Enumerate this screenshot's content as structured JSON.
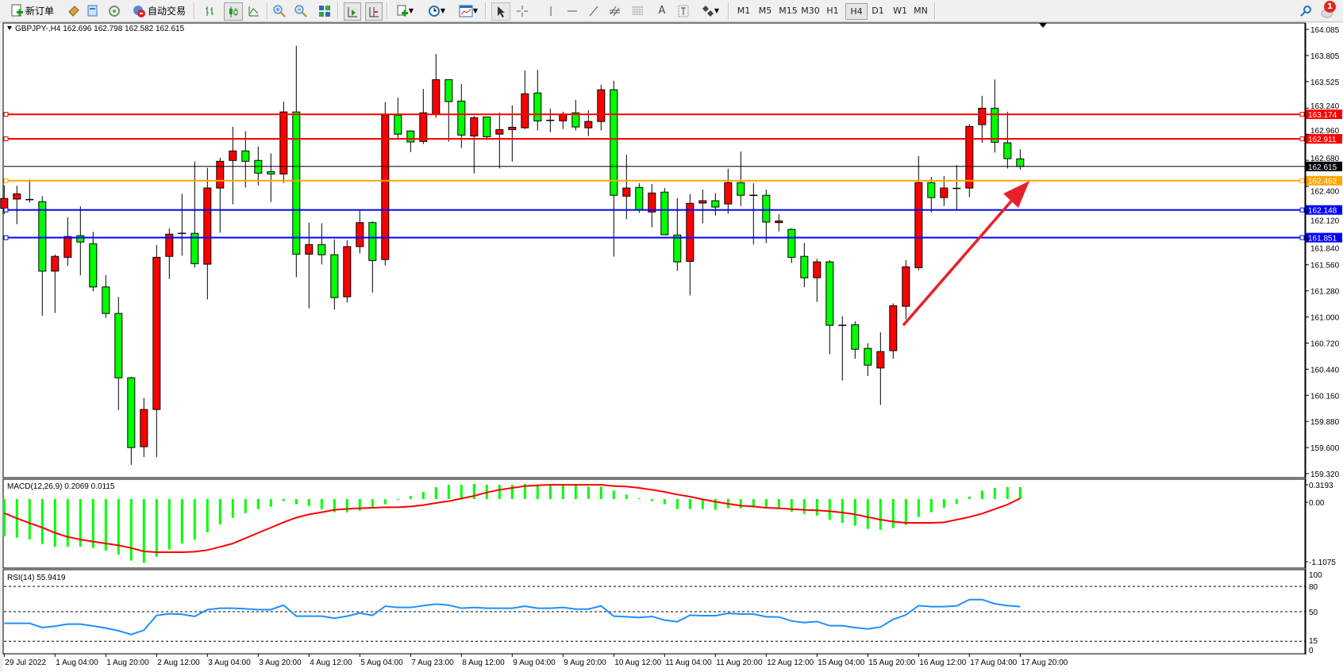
{
  "toolbar": {
    "new_order_label": "新订单",
    "auto_trading_label": "自动交易",
    "timeframes": [
      "M1",
      "M5",
      "M15",
      "M30",
      "H1",
      "H4",
      "D1",
      "W1",
      "MN"
    ],
    "active_timeframe": "H4",
    "notification_count": "1"
  },
  "chart_header": {
    "symbol_line": "GBPJPY-,H4  162.696 162.798 162.582 162.615"
  },
  "colors": {
    "bull_candle": "#ff0000",
    "bear_candle": "#00ff00",
    "resistance_line": "#ff0000",
    "pivot_line": "#ffa500",
    "support_line": "#0000ff",
    "current_price_line": "#000000",
    "macd_histogram": "#00ff00",
    "macd_signal": "#ff0000",
    "rsi_line": "#1e90ff",
    "arrow": "#e8202a"
  },
  "price_axis": {
    "ticks": [
      "164.085",
      "163.805",
      "163.525",
      "163.240",
      "162.960",
      "162.680",
      "162.400",
      "162.120",
      "161.840",
      "161.560",
      "161.280",
      "161.000",
      "160.720",
      "160.440",
      "160.160",
      "159.880",
      "159.600",
      "159.320"
    ],
    "ylim": [
      159.32,
      164.085
    ]
  },
  "levels": [
    {
      "price": "163.174",
      "color": "#ff0000"
    },
    {
      "price": "162.911",
      "color": "#ff0000"
    },
    {
      "price": "162.462",
      "color": "#ffa500"
    },
    {
      "price": "162.148",
      "color": "#0000ff"
    },
    {
      "price": "161.851",
      "color": "#0000ff"
    }
  ],
  "current_price": "162.615",
  "time_axis": [
    "29 Jul 2022",
    "1 Aug 04:00",
    "1 Aug 20:00",
    "2 Aug 12:00",
    "3 Aug 04:00",
    "3 Aug 20:00",
    "4 Aug 12:00",
    "5 Aug 04:00",
    "7 Aug 23:00",
    "8 Aug 12:00",
    "9 Aug 04:00",
    "9 Aug 20:00",
    "10 Aug 12:00",
    "11 Aug 04:00",
    "11 Aug 20:00",
    "12 Aug 12:00",
    "15 Aug 04:00",
    "15 Aug 20:00",
    "16 Aug 12:00",
    "17 Aug 04:00",
    "17 Aug 20:00"
  ],
  "macd": {
    "label": "MACD(12,26,9) 0.2069 0.0115",
    "axis": [
      "0.3193",
      "0.00",
      "-1.1075"
    ]
  },
  "rsi": {
    "label": "RSI(14) 55.9419",
    "axis": [
      "100",
      "80",
      "50",
      "15",
      "0"
    ],
    "levels": [
      80,
      50,
      15
    ]
  },
  "chart_data": {
    "type": "candlestick",
    "ohlc": [
      [
        162.166,
        162.413,
        162.104,
        162.271
      ],
      [
        162.265,
        162.407,
        161.996,
        162.321
      ],
      [
        162.259,
        162.475,
        162.228,
        162.259
      ],
      [
        162.237,
        162.296,
        161.013,
        161.492
      ],
      [
        161.492,
        161.671,
        161.044,
        161.65
      ],
      [
        161.64,
        162.07,
        161.548,
        161.863
      ],
      [
        161.872,
        162.188,
        161.446,
        161.804
      ],
      [
        161.786,
        161.913,
        161.276,
        161.322
      ],
      [
        161.322,
        161.449,
        160.991,
        161.038
      ],
      [
        161.038,
        161.214,
        160.002,
        160.348
      ],
      [
        160.348,
        160.36,
        159.414,
        159.6
      ],
      [
        159.609,
        160.132,
        159.498,
        160.008
      ],
      [
        160.008,
        161.773,
        159.498,
        161.64
      ],
      [
        161.65,
        161.95,
        161.409,
        161.888
      ],
      [
        161.897,
        162.321,
        161.656,
        161.897
      ],
      [
        161.897,
        162.667,
        161.529,
        161.572
      ],
      [
        161.566,
        162.599,
        161.189,
        162.383
      ],
      [
        162.383,
        162.707,
        161.903,
        162.67
      ],
      [
        162.679,
        163.041,
        162.209,
        162.781
      ],
      [
        162.781,
        162.992,
        162.389,
        162.67
      ],
      [
        162.679,
        162.828,
        162.413,
        162.543
      ],
      [
        162.559,
        162.754,
        162.234,
        162.534
      ],
      [
        162.534,
        163.31,
        162.438,
        163.199
      ],
      [
        163.199,
        163.91,
        161.427,
        161.674
      ],
      [
        161.674,
        162.012,
        161.093,
        161.777
      ],
      [
        161.777,
        162.005,
        161.563,
        161.668
      ],
      [
        161.668,
        161.832,
        161.078,
        161.208
      ],
      [
        161.217,
        161.823,
        161.155,
        161.755
      ],
      [
        161.755,
        162.141,
        161.681,
        162.012
      ],
      [
        162.012,
        162.027,
        161.263,
        161.606
      ],
      [
        161.616,
        163.304,
        161.554,
        163.165
      ],
      [
        163.165,
        163.353,
        162.899,
        162.961
      ],
      [
        162.995,
        163.001,
        162.769,
        162.877
      ],
      [
        162.883,
        163.446,
        162.856,
        163.19
      ],
      [
        163.177,
        163.82,
        163.137,
        163.545
      ],
      [
        163.545,
        163.545,
        162.88,
        163.31
      ],
      [
        163.316,
        163.499,
        162.812,
        162.951
      ],
      [
        162.942,
        163.156,
        162.54,
        163.137
      ],
      [
        163.146,
        163.146,
        162.899,
        162.933
      ],
      [
        162.961,
        163.193,
        162.593,
        163.01
      ],
      [
        163.01,
        163.27,
        162.667,
        163.035
      ],
      [
        163.029,
        163.644,
        163.016,
        163.394
      ],
      [
        163.403,
        163.65,
        163.001,
        163.103
      ],
      [
        163.109,
        163.236,
        162.982,
        163.109
      ],
      [
        163.103,
        163.202,
        163.016,
        163.177
      ],
      [
        163.19,
        163.329,
        163.001,
        163.038
      ],
      [
        163.029,
        163.217,
        162.939,
        163.097
      ],
      [
        163.097,
        163.49,
        163.001,
        163.437
      ],
      [
        163.437,
        163.533,
        161.647,
        162.305
      ],
      [
        162.296,
        162.741,
        162.049,
        162.383
      ],
      [
        162.389,
        162.435,
        162.117,
        162.151
      ],
      [
        162.126,
        162.426,
        161.962,
        162.33
      ],
      [
        162.339,
        162.383,
        161.882,
        161.882
      ],
      [
        161.879,
        162.274,
        161.495,
        161.591
      ],
      [
        161.597,
        162.318,
        161.232,
        162.219
      ],
      [
        162.222,
        162.367,
        162.005,
        162.247
      ],
      [
        162.247,
        162.33,
        162.089,
        162.179
      ],
      [
        162.213,
        162.59,
        162.107,
        162.441
      ],
      [
        162.441,
        162.775,
        162.191,
        162.305
      ],
      [
        162.305,
        162.435,
        161.777,
        162.305
      ],
      [
        162.305,
        162.367,
        161.792,
        162.018
      ],
      [
        162.012,
        162.104,
        161.919,
        162.03
      ],
      [
        161.94,
        161.949,
        161.579,
        161.64
      ],
      [
        161.65,
        161.795,
        161.319,
        161.421
      ],
      [
        161.421,
        161.625,
        161.161,
        161.591
      ],
      [
        161.591,
        161.61,
        160.602,
        160.911
      ],
      [
        160.911,
        161.007,
        160.32,
        160.911
      ],
      [
        160.917,
        160.954,
        160.552,
        160.654
      ],
      [
        160.663,
        160.719,
        160.367,
        160.484
      ],
      [
        160.453,
        160.837,
        160.057,
        160.629
      ],
      [
        160.639,
        161.146,
        160.552,
        161.121
      ],
      [
        161.115,
        161.61,
        160.976,
        161.538
      ],
      [
        161.529,
        162.726,
        161.501,
        162.441
      ],
      [
        162.441,
        162.503,
        162.123,
        162.281
      ],
      [
        162.281,
        162.512,
        162.191,
        162.383
      ],
      [
        162.379,
        162.63,
        162.151,
        162.379
      ],
      [
        162.383,
        163.069,
        162.287,
        163.044
      ],
      [
        163.063,
        163.372,
        162.868,
        163.239
      ],
      [
        163.239,
        163.548,
        162.763,
        162.874
      ],
      [
        162.868,
        163.202,
        162.593,
        162.698
      ],
      [
        162.696,
        162.798,
        162.582,
        162.615
      ]
    ],
    "macd_histogram": [
      -0.644,
      -0.667,
      -0.699,
      -0.776,
      -0.822,
      -0.822,
      -0.822,
      -0.845,
      -0.89,
      -0.959,
      -1.064,
      -1.1,
      -0.995,
      -0.872,
      -0.767,
      -0.699,
      -0.575,
      -0.438,
      -0.324,
      -0.242,
      -0.174,
      -0.132,
      -0.036,
      -0.091,
      -0.119,
      -0.174,
      -0.228,
      -0.228,
      -0.201,
      -0.151,
      -0.091,
      -0.005,
      0.055,
      0.123,
      0.205,
      0.247,
      0.247,
      0.26,
      0.247,
      0.247,
      0.247,
      0.26,
      0.247,
      0.237,
      0.237,
      0.237,
      0.215,
      0.215,
      0.146,
      0.078,
      0.014,
      -0.037,
      -0.091,
      -0.174,
      -0.174,
      -0.174,
      -0.187,
      -0.16,
      -0.16,
      -0.142,
      -0.151,
      -0.151,
      -0.219,
      -0.256,
      -0.288,
      -0.356,
      -0.411,
      -0.461,
      -0.516,
      -0.53,
      -0.502,
      -0.447,
      -0.311,
      -0.228,
      -0.151,
      -0.082,
      0.041,
      0.146,
      0.192,
      0.205,
      0.2069
    ],
    "macd_signal": [
      -0.242,
      -0.333,
      -0.416,
      -0.493,
      -0.584,
      -0.653,
      -0.699,
      -0.735,
      -0.767,
      -0.799,
      -0.845,
      -0.904,
      -0.918,
      -0.918,
      -0.918,
      -0.909,
      -0.881,
      -0.826,
      -0.767,
      -0.676,
      -0.584,
      -0.493,
      -0.402,
      -0.32,
      -0.265,
      -0.228,
      -0.187,
      -0.169,
      -0.16,
      -0.151,
      -0.142,
      -0.142,
      -0.128,
      -0.105,
      -0.068,
      -0.037,
      0.009,
      0.055,
      0.114,
      0.16,
      0.192,
      0.224,
      0.237,
      0.247,
      0.247,
      0.247,
      0.247,
      0.247,
      0.224,
      0.215,
      0.192,
      0.16,
      0.123,
      0.078,
      0.041,
      -0.005,
      -0.046,
      -0.082,
      -0.114,
      -0.128,
      -0.151,
      -0.16,
      -0.174,
      -0.187,
      -0.196,
      -0.21,
      -0.233,
      -0.265,
      -0.311,
      -0.356,
      -0.388,
      -0.411,
      -0.411,
      -0.411,
      -0.402,
      -0.356,
      -0.311,
      -0.251,
      -0.174,
      -0.096,
      0.0115
    ],
    "macd_ylim": [
      -1.1075,
      0.3193
    ],
    "rsi": [
      36.2,
      36.2,
      36.2,
      31.2,
      32.8,
      35.3,
      35.3,
      33.1,
      30.6,
      27.4,
      23.0,
      28.1,
      45.6,
      47.5,
      46.9,
      44.4,
      52.5,
      54.1,
      54.1,
      53.4,
      52.5,
      52.5,
      57.8,
      44.7,
      44.7,
      44.7,
      42.2,
      44.7,
      48.4,
      45.6,
      56.6,
      55.0,
      55.0,
      57.2,
      59.1,
      57.8,
      54.1,
      55.0,
      54.1,
      54.1,
      54.1,
      56.6,
      54.1,
      54.1,
      55.0,
      53.1,
      53.1,
      56.9,
      44.7,
      44.0,
      43.1,
      44.4,
      40.0,
      38.1,
      45.9,
      45.3,
      45.3,
      48.1,
      47.2,
      47.2,
      44.0,
      43.7,
      39.0,
      37.1,
      38.4,
      33.4,
      33.4,
      31.2,
      29.6,
      31.8,
      40.9,
      46.2,
      57.2,
      56.0,
      56.0,
      56.9,
      64.4,
      64.4,
      59.4,
      57.2,
      55.9419
    ],
    "rsi_ylim": [
      0,
      100
    ]
  }
}
